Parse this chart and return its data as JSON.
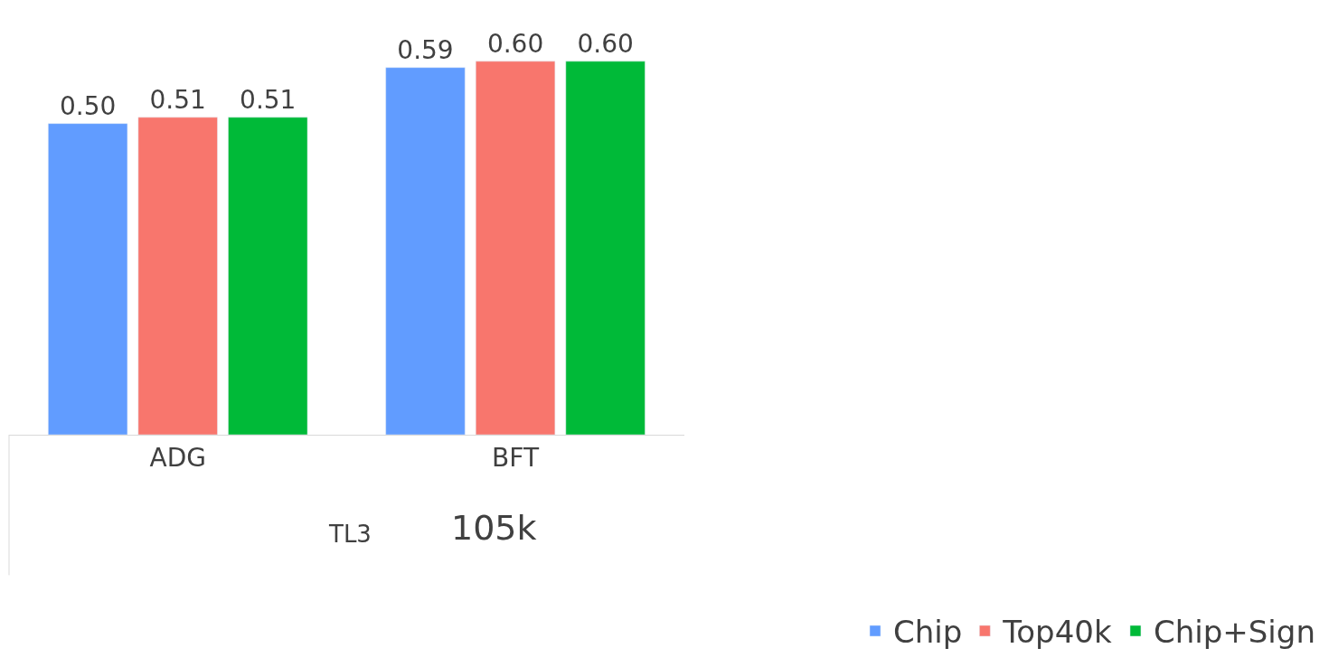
{
  "chart_data": {
    "type": "bar",
    "categories": [
      "ADG",
      "BFT"
    ],
    "series": [
      {
        "name": "Chip",
        "color": "#619cff",
        "values": [
          0.5,
          0.59
        ],
        "value_labels": [
          "0.50",
          "0.59"
        ]
      },
      {
        "name": "Top40k",
        "color": "#f8766d",
        "values": [
          0.51,
          0.6
        ],
        "value_labels": [
          "0.51",
          "0.60"
        ]
      },
      {
        "name": "Chip+Sign",
        "color": "#00ba38",
        "values": [
          0.51,
          0.6
        ],
        "value_labels": [
          "0.51",
          "0.60"
        ]
      }
    ],
    "legend": "bottom right",
    "annotations": [
      "TL3",
      "105k"
    ]
  }
}
